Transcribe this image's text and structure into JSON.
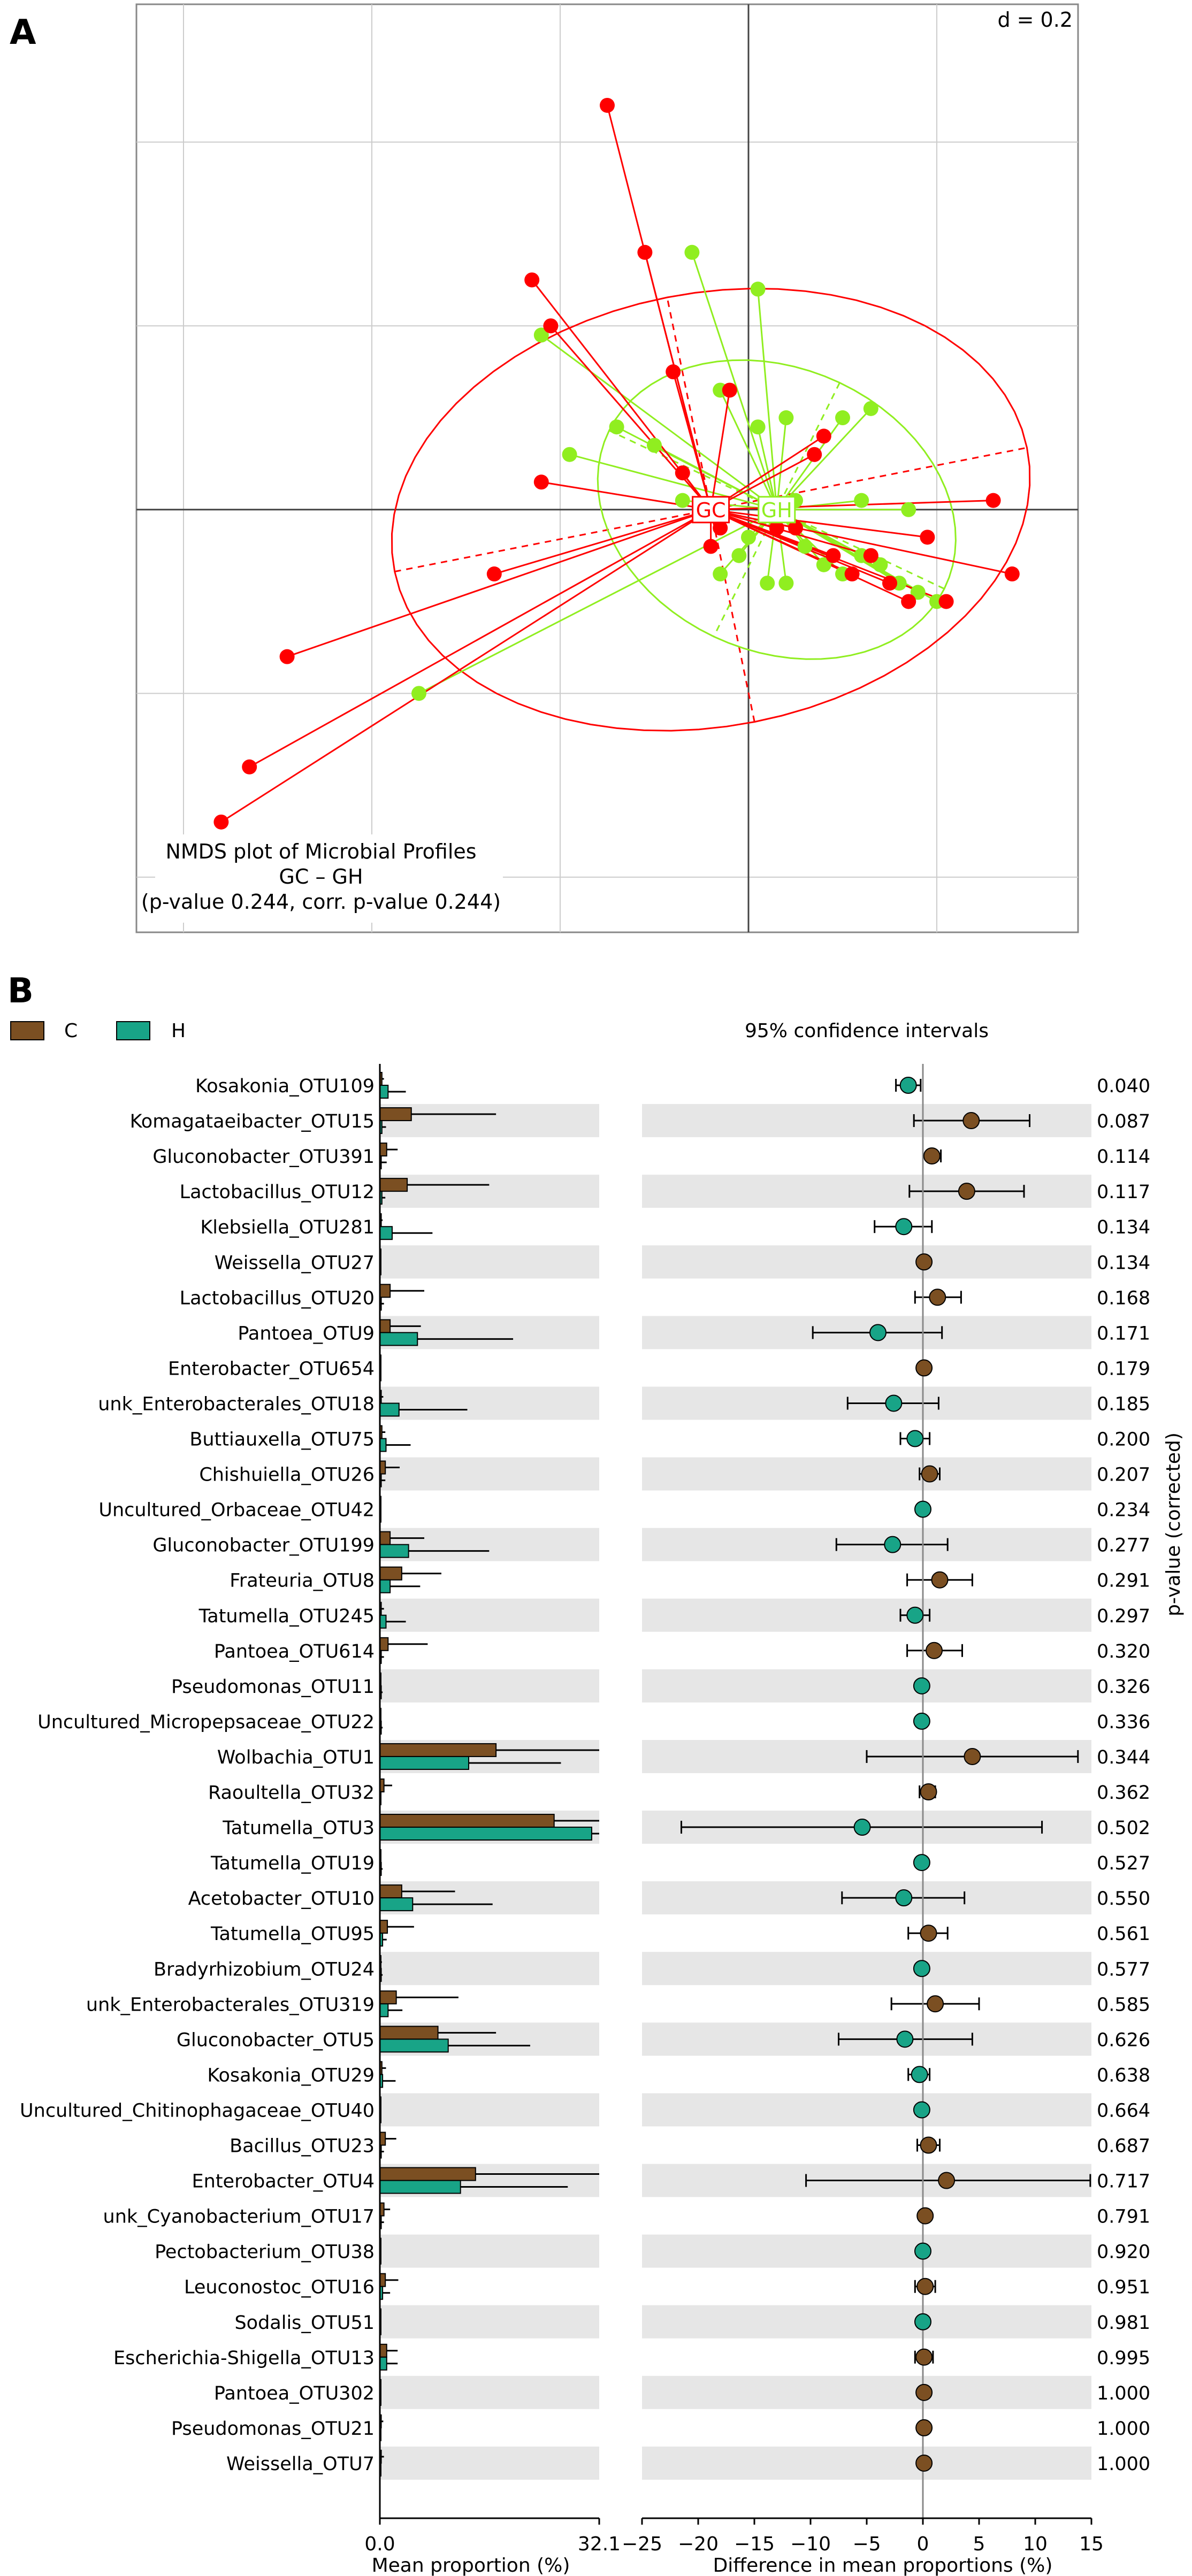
{
  "panel_a": {
    "letter": "A",
    "d_label": "d = 0.2",
    "caption_line1": "NMDS plot of Microbial Profiles",
    "caption_line2": "GC – GH",
    "caption_line3": "(p-value 0.244, corr. p-value 0.244)",
    "colors": {
      "GC": "#ff0000",
      "GH": "#90ee20"
    }
  },
  "panel_b": {
    "letter": "B",
    "legend": [
      {
        "label": "C",
        "color": "#7b4f22"
      },
      {
        "label": "H",
        "color": "#18a487"
      }
    ],
    "ci_title": "95% confidence intervals",
    "left_xlabel": "Mean proportion (%)",
    "right_xlabel": "Difference in mean proportions (%)",
    "pvalue_label": "p-value (corrected)",
    "left_ticks": [
      "0.0",
      "32.1"
    ],
    "right_ticks": [
      "−25",
      "−20",
      "−15",
      "−10",
      "−5",
      "0",
      "5",
      "10",
      "15"
    ]
  },
  "chart_data": [
    {
      "type": "scatter",
      "title": "NMDS plot of Microbial Profiles",
      "subtitle": "GC – GH",
      "annotation": "(p-value 0.244, corr. p-value 0.244)",
      "scale_label": "d = 0.2",
      "xlim": [
        -0.65,
        0.35
      ],
      "ylim": [
        -0.46,
        0.55
      ],
      "grid": true,
      "groups": [
        {
          "name": "GC",
          "color": "#ff0000",
          "centroid": [
            -0.04,
            0.0
          ],
          "points": [
            [
              -0.15,
              0.44
            ],
            [
              -0.23,
              0.25
            ],
            [
              -0.11,
              0.28
            ],
            [
              -0.21,
              0.2
            ],
            [
              -0.08,
              0.15
            ],
            [
              -0.02,
              0.13
            ],
            [
              -0.22,
              0.03
            ],
            [
              -0.27,
              -0.07
            ],
            [
              -0.49,
              -0.16
            ],
            [
              -0.53,
              -0.28
            ],
            [
              -0.56,
              -0.34
            ],
            [
              -0.04,
              -0.04
            ],
            [
              -0.03,
              -0.02
            ],
            [
              0.07,
              0.06
            ],
            [
              0.09,
              -0.05
            ],
            [
              0.11,
              -0.07
            ],
            [
              0.13,
              -0.05
            ],
            [
              0.15,
              -0.08
            ],
            [
              0.17,
              -0.1
            ],
            [
              0.19,
              -0.03
            ],
            [
              0.21,
              -0.1
            ],
            [
              0.05,
              -0.02
            ],
            [
              0.08,
              0.08
            ],
            [
              0.26,
              0.01
            ],
            [
              0.28,
              -0.07
            ],
            [
              0.03,
              -0.02
            ],
            [
              -0.07,
              0.04
            ]
          ]
        },
        {
          "name": "GH",
          "color": "#90ee20",
          "centroid": [
            0.03,
            0.0
          ],
          "points": [
            [
              -0.06,
              0.28
            ],
            [
              0.01,
              0.24
            ],
            [
              -0.22,
              0.19
            ],
            [
              -0.19,
              0.06
            ],
            [
              -0.14,
              0.09
            ],
            [
              -0.1,
              0.07
            ],
            [
              -0.03,
              0.13
            ],
            [
              0.01,
              0.09
            ],
            [
              0.04,
              0.1
            ],
            [
              0.1,
              0.1
            ],
            [
              0.13,
              0.11
            ],
            [
              0.12,
              0.01
            ],
            [
              0.17,
              0.0
            ],
            [
              -0.07,
              0.01
            ],
            [
              -0.03,
              -0.07
            ],
            [
              -0.01,
              -0.05
            ],
            [
              0.02,
              -0.08
            ],
            [
              0.04,
              -0.08
            ],
            [
              0.06,
              -0.04
            ],
            [
              0.08,
              -0.06
            ],
            [
              0.1,
              -0.07
            ],
            [
              0.12,
              -0.05
            ],
            [
              0.14,
              -0.06
            ],
            [
              0.16,
              -0.08
            ],
            [
              0.18,
              -0.09
            ],
            [
              0.2,
              -0.1
            ],
            [
              -0.35,
              -0.2
            ],
            [
              0.0,
              -0.03
            ],
            [
              0.05,
              0.01
            ]
          ]
        }
      ]
    },
    {
      "type": "bar",
      "title": "95% confidence intervals",
      "xlabel": "Mean proportion (%)",
      "xlim": [
        0,
        32.1
      ],
      "series_names": [
        "C",
        "H"
      ],
      "categories": [
        "Kosakonia_OTU109",
        "Komagataeibacter_OTU15",
        "Gluconobacter_OTU391",
        "Lactobacillus_OTU12",
        "Klebsiella_OTU281",
        "Weissella_OTU27",
        "Lactobacillus_OTU20",
        "Pantoea_OTU9",
        "Enterobacter_OTU654",
        "unk_Enterobacterales_OTU18",
        "Buttiauxella_OTU75",
        "Chishuiella_OTU26",
        "Uncultured_Orbaceae_OTU42",
        "Gluconobacter_OTU199",
        "Frateuria_OTU8",
        "Tatumella_OTU245",
        "Pantoea_OTU614",
        "Pseudomonas_OTU11",
        "Uncultured_Micropepsaceae_OTU22",
        "Wolbachia_OTU1",
        "Raoultella_OTU32",
        "Tatumella_OTU3",
        "Tatumella_OTU19",
        "Acetobacter_OTU10",
        "Tatumella_OTU95",
        "Bradyrhizobium_OTU24",
        "unk_Enterobacterales_OTU319",
        "Gluconobacter_OTU5",
        "Kosakonia_OTU29",
        "Uncultured_Chitinophagaceae_OTU40",
        "Bacillus_OTU23",
        "Enterobacter_OTU4",
        "unk_Cyanobacterium_OTU17",
        "Pectobacterium_OTU38",
        "Leuconostoc_OTU16",
        "Sodalis_OTU51",
        "Escherichia-Shigella_OTU13",
        "Pantoea_OTU302",
        "Pseudomonas_OTU21",
        "Weissella_OTU7"
      ],
      "series": [
        {
          "name": "C",
          "color": "#7b4f22",
          "values": [
            0.3,
            4.6,
            1.0,
            4.0,
            0.2,
            0.1,
            1.5,
            1.5,
            0.1,
            0.2,
            0.3,
            0.8,
            0.1,
            1.5,
            3.2,
            0.2,
            1.2,
            0.1,
            0.1,
            17.0,
            0.6,
            25.5,
            0.1,
            3.2,
            1.1,
            0.1,
            2.4,
            8.5,
            0.3,
            0.1,
            0.8,
            14.0,
            0.6,
            0.1,
            0.8,
            0.1,
            1.0,
            0.1,
            0.2,
            0.2
          ],
          "errors": [
            0.6,
            17.0,
            2.6,
            16.0,
            0.4,
            0.2,
            6.5,
            6.0,
            0.2,
            0.5,
            0.8,
            2.9,
            0.2,
            6.5,
            9.0,
            0.6,
            7.0,
            0.2,
            0.2,
            32.1,
            1.8,
            32.1,
            0.2,
            11.0,
            5.0,
            0.3,
            11.5,
            17.0,
            0.9,
            0.2,
            2.4,
            32.1,
            1.5,
            0.2,
            2.7,
            0.2,
            2.6,
            0.2,
            0.5,
            0.6
          ]
        },
        {
          "name": "H",
          "color": "#18a487",
          "values": [
            1.2,
            0.3,
            0.2,
            0.3,
            1.8,
            0.1,
            0.2,
            5.5,
            0.1,
            2.8,
            0.9,
            0.2,
            0.1,
            4.2,
            1.5,
            0.9,
            0.2,
            0.2,
            0.2,
            13.0,
            0.1,
            31.0,
            0.2,
            4.8,
            0.4,
            0.2,
            1.2,
            10.0,
            0.4,
            0.1,
            0.2,
            11.8,
            0.2,
            0.1,
            0.4,
            0.1,
            1.0,
            0.1,
            0.1,
            0.1
          ],
          "errors": [
            3.8,
            0.9,
            1.0,
            0.8,
            7.7,
            0.2,
            0.6,
            19.5,
            0.2,
            12.8,
            4.5,
            0.8,
            0.2,
            16.0,
            5.9,
            3.8,
            0.6,
            0.4,
            0.4,
            26.5,
            0.2,
            32.1,
            0.4,
            16.5,
            1.0,
            0.4,
            3.3,
            22.0,
            2.3,
            0.2,
            0.6,
            27.5,
            0.6,
            0.2,
            1.5,
            0.2,
            2.6,
            0.2,
            0.2,
            0.2
          ]
        }
      ]
    },
    {
      "type": "scatter",
      "title": "95% confidence intervals",
      "xlabel": "Difference in mean proportions (%)",
      "ylabel": "p-value (corrected)",
      "xlim": [
        -25,
        15
      ],
      "xticks": [
        -25,
        -20,
        -15,
        -10,
        -5,
        0,
        5,
        10,
        15
      ],
      "points": [
        {
          "diff": -1.3,
          "lo": -2.4,
          "hi": -0.2,
          "higher": "H",
          "p": "0.040"
        },
        {
          "diff": 4.3,
          "lo": -0.8,
          "hi": 9.5,
          "higher": "C",
          "p": "0.087"
        },
        {
          "diff": 0.8,
          "lo": 0.0,
          "hi": 1.6,
          "higher": "C",
          "p": "0.114"
        },
        {
          "diff": 3.9,
          "lo": -1.2,
          "hi": 9.0,
          "higher": "C",
          "p": "0.117"
        },
        {
          "diff": -1.7,
          "lo": -4.3,
          "hi": 0.8,
          "higher": "H",
          "p": "0.134"
        },
        {
          "diff": 0.1,
          "lo": 0.0,
          "hi": 0.2,
          "higher": "C",
          "p": "0.134"
        },
        {
          "diff": 1.3,
          "lo": -0.7,
          "hi": 3.4,
          "higher": "C",
          "p": "0.168"
        },
        {
          "diff": -4.0,
          "lo": -9.8,
          "hi": 1.7,
          "higher": "H",
          "p": "0.171"
        },
        {
          "diff": 0.1,
          "lo": 0.0,
          "hi": 0.2,
          "higher": "C",
          "p": "0.179"
        },
        {
          "diff": -2.6,
          "lo": -6.7,
          "hi": 1.4,
          "higher": "H",
          "p": "0.185"
        },
        {
          "diff": -0.7,
          "lo": -2.0,
          "hi": 0.6,
          "higher": "H",
          "p": "0.200"
        },
        {
          "diff": 0.6,
          "lo": -0.3,
          "hi": 1.5,
          "higher": "C",
          "p": "0.207"
        },
        {
          "diff": 0.0,
          "lo": 0.0,
          "hi": 0.0,
          "higher": "H",
          "p": "0.234"
        },
        {
          "diff": -2.7,
          "lo": -7.7,
          "hi": 2.2,
          "higher": "H",
          "p": "0.277"
        },
        {
          "diff": 1.5,
          "lo": -1.4,
          "hi": 4.4,
          "higher": "C",
          "p": "0.291"
        },
        {
          "diff": -0.7,
          "lo": -2.0,
          "hi": 0.6,
          "higher": "H",
          "p": "0.297"
        },
        {
          "diff": 1.0,
          "lo": -1.4,
          "hi": 3.5,
          "higher": "C",
          "p": "0.320"
        },
        {
          "diff": -0.1,
          "lo": -0.2,
          "hi": 0.0,
          "higher": "H",
          "p": "0.326"
        },
        {
          "diff": -0.1,
          "lo": -0.2,
          "hi": 0.0,
          "higher": "H",
          "p": "0.336"
        },
        {
          "diff": 4.4,
          "lo": -5.0,
          "hi": 13.8,
          "higher": "C",
          "p": "0.344"
        },
        {
          "diff": 0.5,
          "lo": -0.3,
          "hi": 1.1,
          "higher": "C",
          "p": "0.362"
        },
        {
          "diff": -5.4,
          "lo": -21.5,
          "hi": 10.6,
          "higher": "H",
          "p": "0.502"
        },
        {
          "diff": -0.1,
          "lo": -0.2,
          "hi": 0.0,
          "higher": "H",
          "p": "0.527"
        },
        {
          "diff": -1.7,
          "lo": -7.2,
          "hi": 3.7,
          "higher": "H",
          "p": "0.550"
        },
        {
          "diff": 0.5,
          "lo": -1.3,
          "hi": 2.2,
          "higher": "C",
          "p": "0.561"
        },
        {
          "diff": -0.1,
          "lo": -0.2,
          "hi": 0.0,
          "higher": "H",
          "p": "0.577"
        },
        {
          "diff": 1.1,
          "lo": -2.8,
          "hi": 5.0,
          "higher": "C",
          "p": "0.585"
        },
        {
          "diff": -1.6,
          "lo": -7.5,
          "hi": 4.4,
          "higher": "H",
          "p": "0.626"
        },
        {
          "diff": -0.3,
          "lo": -1.3,
          "hi": 0.6,
          "higher": "H",
          "p": "0.638"
        },
        {
          "diff": -0.1,
          "lo": -0.2,
          "hi": 0.0,
          "higher": "H",
          "p": "0.664"
        },
        {
          "diff": 0.5,
          "lo": -0.5,
          "hi": 1.5,
          "higher": "C",
          "p": "0.687"
        },
        {
          "diff": 2.1,
          "lo": -10.4,
          "hi": 14.9,
          "higher": "C",
          "p": "0.717"
        },
        {
          "diff": 0.2,
          "lo": 0.0,
          "hi": 0.4,
          "higher": "C",
          "p": "0.791"
        },
        {
          "diff": 0.0,
          "lo": 0.0,
          "hi": 0.0,
          "higher": "H",
          "p": "0.920"
        },
        {
          "diff": 0.2,
          "lo": -0.7,
          "hi": 1.1,
          "higher": "C",
          "p": "0.951"
        },
        {
          "diff": 0.0,
          "lo": 0.0,
          "hi": 0.0,
          "higher": "H",
          "p": "0.981"
        },
        {
          "diff": 0.1,
          "lo": -0.7,
          "hi": 0.9,
          "higher": "C",
          "p": "0.995"
        },
        {
          "diff": 0.1,
          "lo": 0.0,
          "hi": 0.2,
          "higher": "C",
          "p": "1.000"
        },
        {
          "diff": 0.1,
          "lo": 0.0,
          "hi": 0.2,
          "higher": "C",
          "p": "1.000"
        },
        {
          "diff": 0.1,
          "lo": 0.0,
          "hi": 0.2,
          "higher": "C",
          "p": "1.000"
        }
      ]
    }
  ]
}
